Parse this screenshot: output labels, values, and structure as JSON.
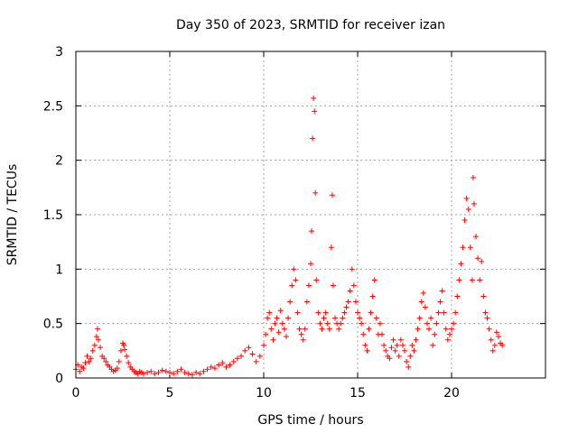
{
  "chart_data": {
    "type": "scatter",
    "title": "Day 350 of 2023, SRMTID for receiver izan",
    "xlabel": "GPS time / hours",
    "ylabel": "SRMTID / TECUs",
    "xlim": [
      0,
      25
    ],
    "ylim": [
      0,
      3
    ],
    "xticks": [
      0,
      5,
      10,
      15,
      20
    ],
    "yticks": [
      0,
      0.5,
      1,
      1.5,
      2,
      2.5,
      3
    ],
    "xtick_labels": [
      "0",
      "5",
      "10",
      "15",
      "20"
    ],
    "ytick_labels": [
      "0",
      "0.5",
      "1",
      "1.5",
      "2",
      "2.5",
      "3"
    ],
    "grid": true,
    "marker": "+",
    "color": "#ff0000",
    "series": [
      {
        "name": "SRMTID",
        "x": [
          0.0,
          0.1,
          0.2,
          0.3,
          0.4,
          0.5,
          0.6,
          0.7,
          0.8,
          0.9,
          1.0,
          1.1,
          1.15,
          1.2,
          1.3,
          1.4,
          1.5,
          1.6,
          1.7,
          1.8,
          1.9,
          2.0,
          2.1,
          2.2,
          2.3,
          2.4,
          2.5,
          2.55,
          2.6,
          2.7,
          2.8,
          2.9,
          3.0,
          3.1,
          3.2,
          3.3,
          3.4,
          3.5,
          3.6,
          3.8,
          4.0,
          4.2,
          4.4,
          4.6,
          4.8,
          5.0,
          5.2,
          5.4,
          5.6,
          5.8,
          6.0,
          6.2,
          6.4,
          6.6,
          6.8,
          7.0,
          7.2,
          7.4,
          7.6,
          7.8,
          8.0,
          8.2,
          8.4,
          8.6,
          8.8,
          9.0,
          9.2,
          9.4,
          9.6,
          9.8,
          10.0,
          10.1,
          10.2,
          10.3,
          10.4,
          10.5,
          10.6,
          10.7,
          10.8,
          10.9,
          11.0,
          11.1,
          11.2,
          11.3,
          11.4,
          11.5,
          11.6,
          11.7,
          11.8,
          11.9,
          12.0,
          12.1,
          12.2,
          12.3,
          12.4,
          12.5,
          12.55,
          12.6,
          12.65,
          12.7,
          12.75,
          12.8,
          12.9,
          13.0,
          13.1,
          13.2,
          13.3,
          13.4,
          13.5,
          13.6,
          13.65,
          13.7,
          13.8,
          13.9,
          14.0,
          14.1,
          14.2,
          14.3,
          14.4,
          14.5,
          14.6,
          14.7,
          14.8,
          14.9,
          15.0,
          15.1,
          15.2,
          15.3,
          15.4,
          15.5,
          15.6,
          15.7,
          15.8,
          15.9,
          16.0,
          16.1,
          16.2,
          16.3,
          16.4,
          16.5,
          16.6,
          16.7,
          16.8,
          16.9,
          17.0,
          17.1,
          17.2,
          17.3,
          17.4,
          17.5,
          17.6,
          17.7,
          17.8,
          17.9,
          18.0,
          18.1,
          18.2,
          18.3,
          18.4,
          18.5,
          18.6,
          18.7,
          18.8,
          18.9,
          19.0,
          19.1,
          19.2,
          19.3,
          19.4,
          19.5,
          19.6,
          19.7,
          19.8,
          19.9,
          20.0,
          20.1,
          20.2,
          20.3,
          20.4,
          20.5,
          20.6,
          20.7,
          20.8,
          20.9,
          21.0,
          21.1,
          21.15,
          21.2,
          21.3,
          21.4,
          21.5,
          21.6,
          21.7,
          21.8,
          21.9,
          22.0,
          22.1,
          22.2,
          22.3,
          22.4,
          22.5,
          22.6,
          22.7
        ],
        "y": [
          0.08,
          0.12,
          0.06,
          0.1,
          0.09,
          0.14,
          0.2,
          0.15,
          0.18,
          0.25,
          0.3,
          0.38,
          0.45,
          0.35,
          0.28,
          0.2,
          0.18,
          0.15,
          0.12,
          0.1,
          0.08,
          0.06,
          0.07,
          0.09,
          0.15,
          0.25,
          0.32,
          0.3,
          0.26,
          0.2,
          0.14,
          0.1,
          0.08,
          0.06,
          0.05,
          0.04,
          0.06,
          0.05,
          0.04,
          0.05,
          0.06,
          0.04,
          0.05,
          0.07,
          0.06,
          0.05,
          0.04,
          0.06,
          0.08,
          0.05,
          0.04,
          0.03,
          0.05,
          0.04,
          0.06,
          0.08,
          0.1,
          0.09,
          0.12,
          0.14,
          0.1,
          0.12,
          0.15,
          0.18,
          0.2,
          0.25,
          0.28,
          0.22,
          0.15,
          0.2,
          0.3,
          0.4,
          0.55,
          0.6,
          0.45,
          0.35,
          0.5,
          0.55,
          0.42,
          0.62,
          0.5,
          0.45,
          0.38,
          0.55,
          0.7,
          0.85,
          1.0,
          0.9,
          0.6,
          0.45,
          0.4,
          0.35,
          0.45,
          0.7,
          0.85,
          1.05,
          1.35,
          2.2,
          2.57,
          2.45,
          1.7,
          0.9,
          0.6,
          0.5,
          0.45,
          0.55,
          0.6,
          0.5,
          0.45,
          1.2,
          1.68,
          0.85,
          0.55,
          0.5,
          0.45,
          0.5,
          0.55,
          0.6,
          0.65,
          0.7,
          0.8,
          1.0,
          0.85,
          0.7,
          0.6,
          0.55,
          0.5,
          0.4,
          0.3,
          0.25,
          0.45,
          0.6,
          0.75,
          0.9,
          0.55,
          0.4,
          0.5,
          0.4,
          0.3,
          0.25,
          0.2,
          0.18,
          0.28,
          0.35,
          0.25,
          0.3,
          0.2,
          0.35,
          0.3,
          0.25,
          0.15,
          0.1,
          0.2,
          0.3,
          0.25,
          0.35,
          0.45,
          0.55,
          0.7,
          0.78,
          0.65,
          0.5,
          0.45,
          0.55,
          0.3,
          0.4,
          0.5,
          0.6,
          0.7,
          0.8,
          0.6,
          0.45,
          0.35,
          0.4,
          0.45,
          0.5,
          0.6,
          0.75,
          0.9,
          1.05,
          1.2,
          1.45,
          1.65,
          1.55,
          1.2,
          0.9,
          1.84,
          1.6,
          1.3,
          1.1,
          0.9,
          1.07,
          0.75,
          0.6,
          0.55,
          0.45,
          0.35,
          0.25,
          0.3,
          0.42,
          0.38,
          0.32,
          0.3
        ]
      }
    ]
  }
}
